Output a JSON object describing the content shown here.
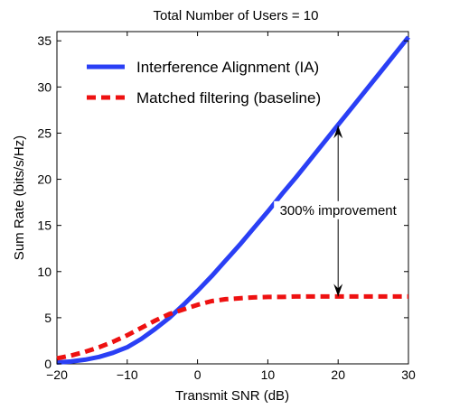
{
  "chart_data": {
    "type": "line",
    "title": "Total Number of Users = 10",
    "xlabel": "Transmit SNR (dB)",
    "ylabel": "Sum Rate (bits/s/Hz)",
    "xlim": [
      -20,
      30
    ],
    "ylim": [
      0,
      36
    ],
    "xticks": [
      "−20",
      "−10",
      "0",
      "10",
      "20",
      "30"
    ],
    "yticks": [
      "0",
      "5",
      "10",
      "15",
      "20",
      "25",
      "30",
      "35"
    ],
    "grid": false,
    "legend_position": "top-left",
    "series": [
      {
        "name": "Interference Alignment (IA)",
        "color": "#2a3ff5",
        "style": "solid",
        "x": [
          -20,
          -18,
          -16,
          -14,
          -12,
          -10,
          -8,
          -6,
          -4,
          -2,
          0,
          2,
          4,
          6,
          8,
          10,
          12,
          14,
          16,
          18,
          20,
          22,
          24,
          26,
          28,
          30
        ],
        "y": [
          0.15,
          0.25,
          0.45,
          0.75,
          1.2,
          1.8,
          2.7,
          3.8,
          5.0,
          6.4,
          7.9,
          9.5,
          11.2,
          12.9,
          14.7,
          16.5,
          18.4,
          20.2,
          22.1,
          24.0,
          25.9,
          27.8,
          29.7,
          31.6,
          33.5,
          35.4
        ]
      },
      {
        "name": "Matched filtering (baseline)",
        "color": "#ee1111",
        "style": "dashed",
        "x": [
          -20,
          -18,
          -16,
          -14,
          -12,
          -10,
          -8,
          -6,
          -4,
          -2,
          0,
          2,
          4,
          6,
          8,
          10,
          12,
          14,
          16,
          18,
          20,
          22,
          24,
          26,
          28,
          30
        ],
        "y": [
          0.6,
          0.9,
          1.3,
          1.8,
          2.4,
          3.1,
          3.9,
          4.7,
          5.4,
          5.9,
          6.4,
          6.8,
          7.0,
          7.1,
          7.2,
          7.25,
          7.25,
          7.3,
          7.3,
          7.3,
          7.3,
          7.3,
          7.3,
          7.3,
          7.3,
          7.3
        ]
      }
    ],
    "annotation": {
      "text": "300% improvement",
      "arrow_x": 20,
      "arrow_y_top": 25.8,
      "arrow_y_bottom": 7.3
    }
  }
}
